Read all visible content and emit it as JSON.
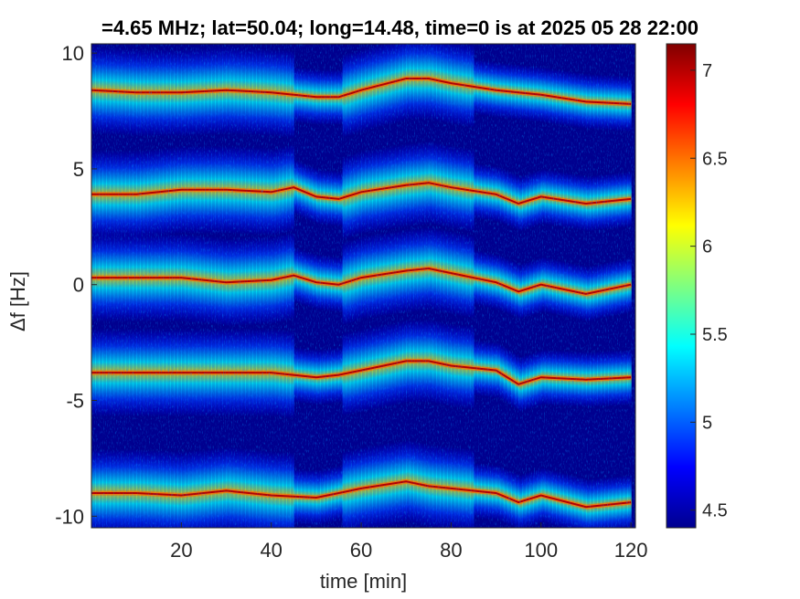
{
  "chart_data": {
    "type": "heatmap",
    "title": "=4.65 MHz;  lat=50.04; long=14.48, time=0 is at 2025 05 28 22:00",
    "xlabel": "time [min]",
    "ylabel": "Δf [Hz]",
    "xlim": [
      0,
      121
    ],
    "ylim": [
      -10.5,
      10.4
    ],
    "xticks": [
      20,
      40,
      60,
      80,
      100,
      120
    ],
    "yticks": [
      10,
      5,
      0,
      -5,
      -10
    ],
    "colorbar": {
      "min": 4.4,
      "max": 7.15,
      "ticks": [
        4.5,
        5,
        5.5,
        6,
        6.5,
        7
      ],
      "colormap": "jet"
    },
    "background_color": "#00008f",
    "series": [
      {
        "name": "line at +8",
        "points": [
          [
            0,
            8.4
          ],
          [
            10,
            8.3
          ],
          [
            20,
            8.3
          ],
          [
            30,
            8.4
          ],
          [
            40,
            8.3
          ],
          [
            50,
            8.1
          ],
          [
            55,
            8.1
          ],
          [
            60,
            8.4
          ],
          [
            70,
            8.9
          ],
          [
            75,
            8.9
          ],
          [
            80,
            8.7
          ],
          [
            90,
            8.4
          ],
          [
            100,
            8.2
          ],
          [
            110,
            7.9
          ],
          [
            120,
            7.8
          ]
        ]
      },
      {
        "name": "line at +4",
        "points": [
          [
            0,
            3.9
          ],
          [
            10,
            3.9
          ],
          [
            20,
            4.1
          ],
          [
            30,
            4.1
          ],
          [
            40,
            4.0
          ],
          [
            45,
            4.2
          ],
          [
            50,
            3.8
          ],
          [
            55,
            3.7
          ],
          [
            60,
            4.0
          ],
          [
            70,
            4.3
          ],
          [
            75,
            4.4
          ],
          [
            80,
            4.2
          ],
          [
            90,
            3.9
          ],
          [
            95,
            3.5
          ],
          [
            100,
            3.8
          ],
          [
            110,
            3.5
          ],
          [
            120,
            3.7
          ]
        ]
      },
      {
        "name": "line at 0",
        "points": [
          [
            0,
            0.3
          ],
          [
            10,
            0.3
          ],
          [
            20,
            0.3
          ],
          [
            30,
            0.1
          ],
          [
            40,
            0.2
          ],
          [
            45,
            0.4
          ],
          [
            50,
            0.1
          ],
          [
            55,
            0.0
          ],
          [
            60,
            0.3
          ],
          [
            70,
            0.6
          ],
          [
            75,
            0.7
          ],
          [
            80,
            0.5
          ],
          [
            90,
            0.1
          ],
          [
            95,
            -0.3
          ],
          [
            100,
            0.0
          ],
          [
            110,
            -0.4
          ],
          [
            120,
            0.0
          ]
        ]
      },
      {
        "name": "line at -4",
        "points": [
          [
            0,
            -3.8
          ],
          [
            10,
            -3.8
          ],
          [
            20,
            -3.8
          ],
          [
            30,
            -3.8
          ],
          [
            40,
            -3.8
          ],
          [
            50,
            -4.0
          ],
          [
            55,
            -3.9
          ],
          [
            60,
            -3.7
          ],
          [
            70,
            -3.3
          ],
          [
            75,
            -3.3
          ],
          [
            80,
            -3.5
          ],
          [
            90,
            -3.7
          ],
          [
            95,
            -4.3
          ],
          [
            100,
            -4.0
          ],
          [
            110,
            -4.1
          ],
          [
            120,
            -4.0
          ]
        ]
      },
      {
        "name": "line at -9",
        "points": [
          [
            0,
            -9.0
          ],
          [
            10,
            -9.0
          ],
          [
            20,
            -9.1
          ],
          [
            30,
            -8.9
          ],
          [
            40,
            -9.1
          ],
          [
            50,
            -9.2
          ],
          [
            55,
            -9.0
          ],
          [
            60,
            -8.8
          ],
          [
            70,
            -8.5
          ],
          [
            75,
            -8.7
          ],
          [
            80,
            -8.8
          ],
          [
            90,
            -9.0
          ],
          [
            95,
            -9.4
          ],
          [
            100,
            -9.1
          ],
          [
            110,
            -9.6
          ],
          [
            120,
            -9.4
          ]
        ]
      }
    ]
  }
}
